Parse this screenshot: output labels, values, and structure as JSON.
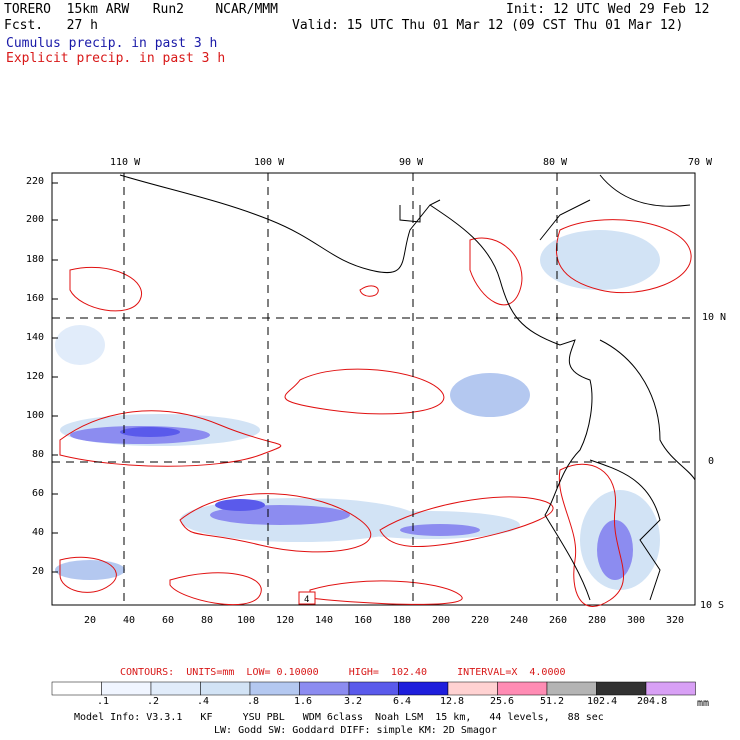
{
  "header": {
    "left_line1": "TORERO  15km ARW   Run2    NCAR/MMM",
    "left_line2": "Fcst.   27 h",
    "right_line1": "Init: 12 UTC Wed 29 Feb 12",
    "right_line2": "Valid: 15 UTC Thu 01 Mar 12 (09 CST Thu 01 Mar 12)",
    "legend_cumulus": "Cumulus precip. in past 3 h",
    "legend_explicit": "Explicit precip. in past 3 h"
  },
  "map": {
    "lon_labels": [
      "110 W",
      "100 W",
      "90 W",
      "80 W",
      "70 W"
    ],
    "lat_labels": [
      "10 N",
      "0",
      "10 S"
    ],
    "x_ticks": [
      "20",
      "40",
      "60",
      "80",
      "100",
      "120",
      "140",
      "160",
      "180",
      "200",
      "220",
      "240",
      "260",
      "280",
      "300",
      "320"
    ],
    "y_ticks": [
      "220",
      "200",
      "180",
      "160",
      "140",
      "120",
      "100",
      "80",
      "60",
      "40",
      "20"
    ],
    "box_label": "4",
    "colors": {
      "contour": "#e01010",
      "coast": "#000000",
      "grid": "#000000"
    }
  },
  "contours": {
    "caption": "CONTOURS:  UNITS=mm  LOW= 0.10000     HIGH=  102.40     INTERVAL=X  4.0000"
  },
  "colorbar": {
    "labels": [
      ".1",
      ".2",
      ".4",
      ".8",
      "1.6",
      "3.2",
      "6.4",
      "12.8",
      "25.6",
      "51.2",
      "102.4",
      "204.8"
    ],
    "unit": "mm",
    "colors": [
      "#ffffff",
      "#f0f5ff",
      "#e1ecfa",
      "#d2e3f5",
      "#b4c8f0",
      "#8c8cf0",
      "#5a5aeb",
      "#1e1edc",
      "#ffd2d2",
      "#ff8cb4",
      "#b4b4b4",
      "#323232",
      "#d8a0f5"
    ]
  },
  "footer": {
    "line1": "Model Info: V3.3.1   KF     YSU PBL   WDM 6class  Noah LSM  15 km,   44 levels,   88 sec",
    "line2": "LW: Godd SW: Goddard DIFF: simple KM: 2D Smagor"
  }
}
